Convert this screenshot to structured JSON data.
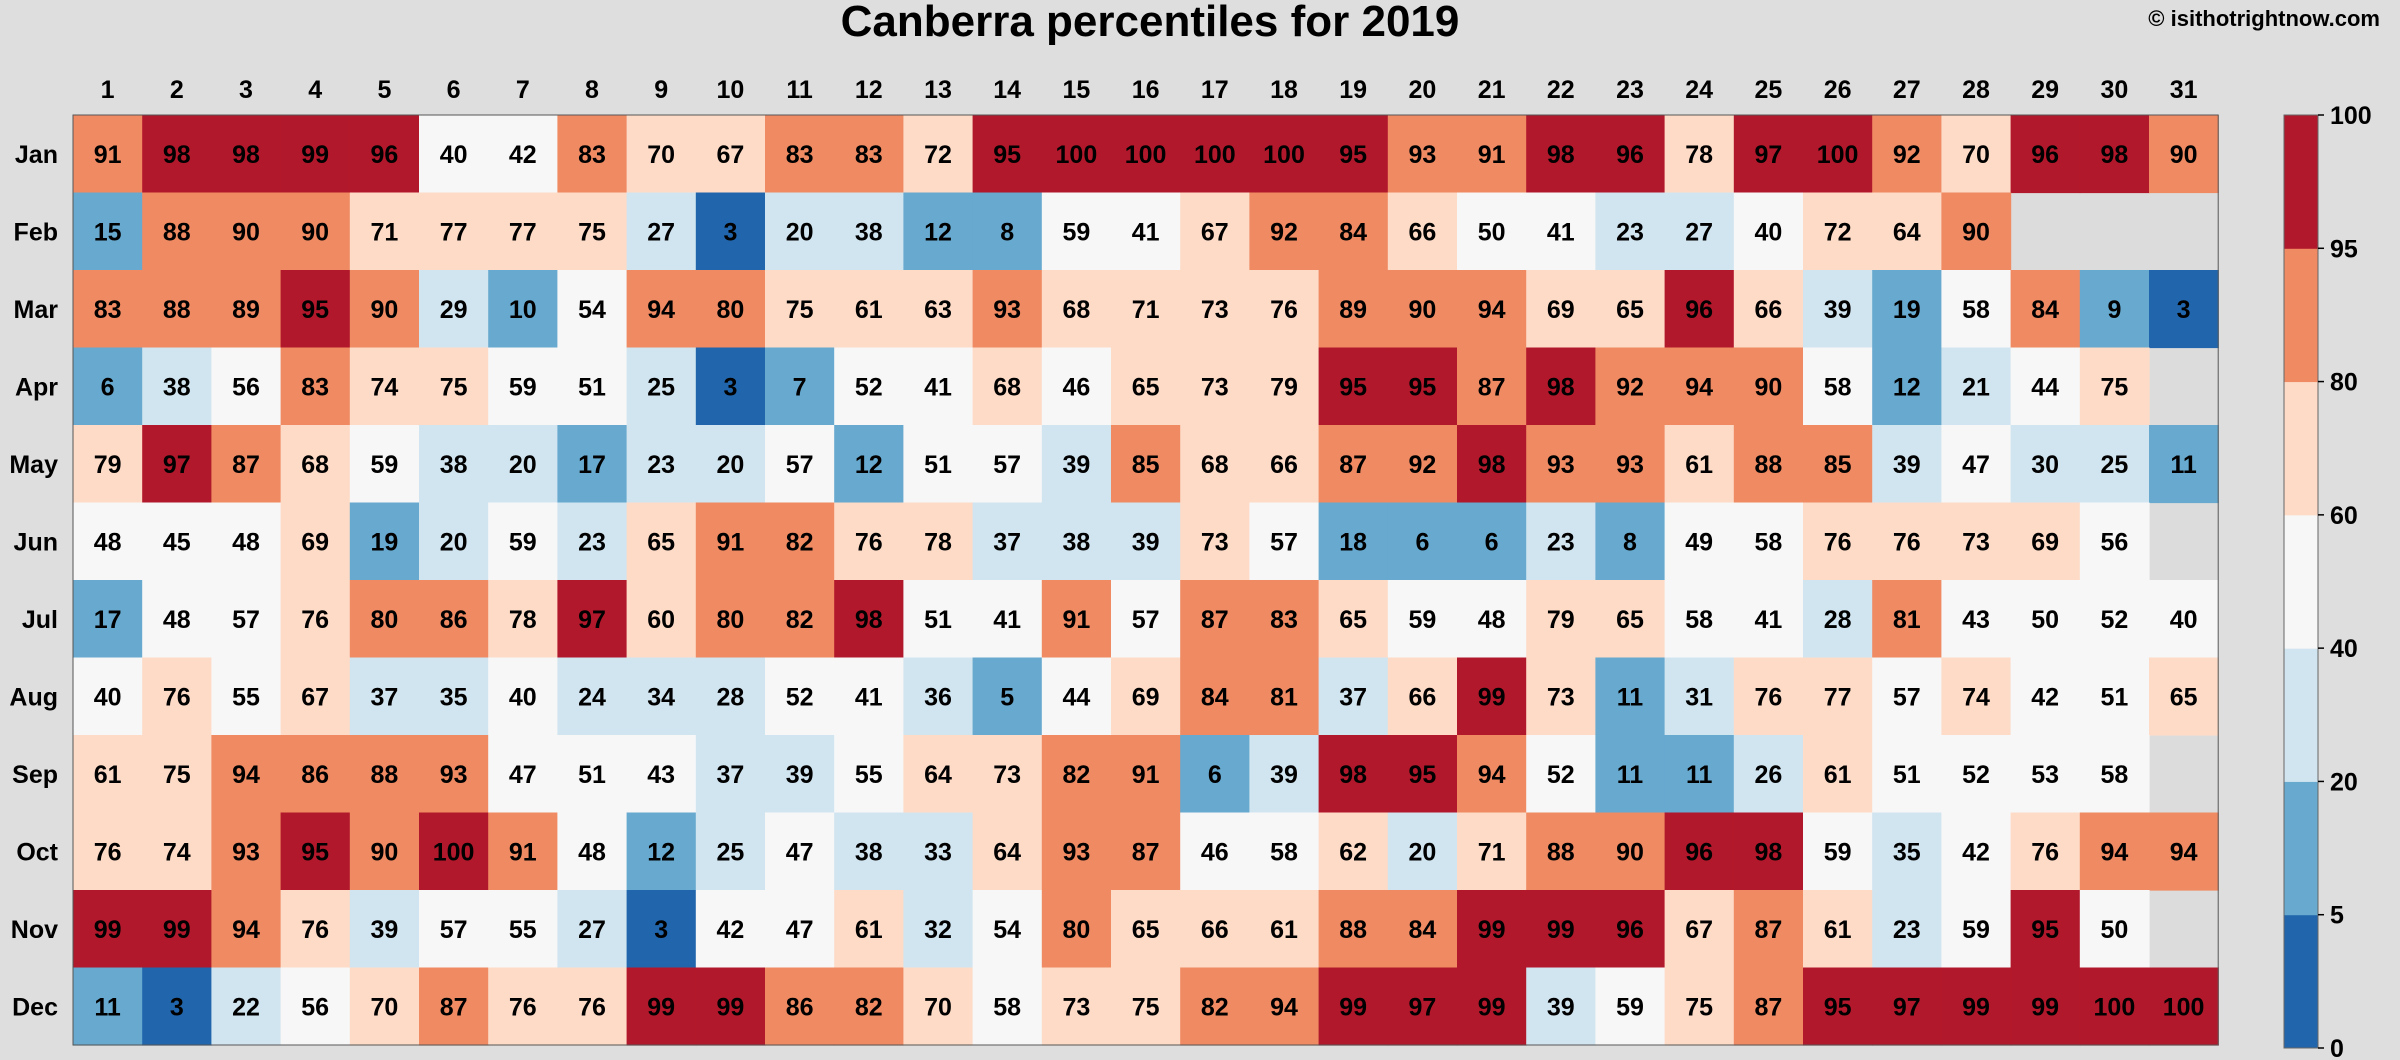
{
  "title": "Canberra percentiles for 2019",
  "copyright": "© isithotrightnow.com",
  "chart_data": {
    "type": "heatmap",
    "title": "Canberra percentiles for 2019",
    "x": [
      "1",
      "2",
      "3",
      "4",
      "5",
      "6",
      "7",
      "8",
      "9",
      "10",
      "11",
      "12",
      "13",
      "14",
      "15",
      "16",
      "17",
      "18",
      "19",
      "20",
      "21",
      "22",
      "23",
      "24",
      "25",
      "26",
      "27",
      "28",
      "29",
      "30",
      "31"
    ],
    "y": [
      "Jan",
      "Feb",
      "Mar",
      "Apr",
      "May",
      "Jun",
      "Jul",
      "Aug",
      "Sep",
      "Oct",
      "Nov",
      "Dec"
    ],
    "values": [
      [
        91,
        98,
        98,
        99,
        96,
        40,
        42,
        83,
        70,
        67,
        83,
        83,
        72,
        95,
        100,
        100,
        100,
        100,
        95,
        93,
        91,
        98,
        96,
        78,
        97,
        100,
        92,
        70,
        96,
        98,
        90
      ],
      [
        15,
        88,
        90,
        90,
        71,
        77,
        77,
        75,
        27,
        3,
        20,
        38,
        12,
        8,
        59,
        41,
        67,
        92,
        84,
        66,
        50,
        41,
        23,
        27,
        40,
        72,
        64,
        90,
        null,
        null,
        null
      ],
      [
        83,
        88,
        89,
        95,
        90,
        29,
        10,
        54,
        94,
        80,
        75,
        61,
        63,
        93,
        68,
        71,
        73,
        76,
        89,
        90,
        94,
        69,
        65,
        96,
        66,
        39,
        19,
        58,
        84,
        9,
        3
      ],
      [
        6,
        38,
        56,
        83,
        74,
        75,
        59,
        51,
        25,
        3,
        7,
        52,
        41,
        68,
        46,
        65,
        73,
        79,
        95,
        95,
        87,
        98,
        92,
        94,
        90,
        58,
        12,
        21,
        44,
        75,
        null
      ],
      [
        79,
        97,
        87,
        68,
        59,
        38,
        20,
        17,
        23,
        20,
        57,
        12,
        51,
        57,
        39,
        85,
        68,
        66,
        87,
        92,
        98,
        93,
        93,
        61,
        88,
        85,
        39,
        47,
        30,
        25,
        11
      ],
      [
        48,
        45,
        48,
        69,
        19,
        20,
        59,
        23,
        65,
        91,
        82,
        76,
        78,
        37,
        38,
        39,
        73,
        57,
        18,
        6,
        6,
        23,
        8,
        49,
        58,
        76,
        76,
        73,
        69,
        56,
        null
      ],
      [
        17,
        48,
        57,
        76,
        80,
        86,
        78,
        97,
        60,
        80,
        82,
        98,
        51,
        41,
        91,
        57,
        87,
        83,
        65,
        59,
        48,
        79,
        65,
        58,
        41,
        28,
        81,
        43,
        50,
        52,
        40
      ],
      [
        40,
        76,
        55,
        67,
        37,
        35,
        40,
        24,
        34,
        28,
        52,
        41,
        36,
        5,
        44,
        69,
        84,
        81,
        37,
        66,
        99,
        73,
        11,
        31,
        76,
        77,
        57,
        74,
        42,
        51,
        65
      ],
      [
        61,
        75,
        94,
        86,
        88,
        93,
        47,
        51,
        43,
        37,
        39,
        55,
        64,
        73,
        82,
        91,
        6,
        39,
        98,
        95,
        94,
        52,
        11,
        11,
        26,
        61,
        51,
        52,
        53,
        58,
        null
      ],
      [
        76,
        74,
        93,
        95,
        90,
        100,
        91,
        48,
        12,
        25,
        47,
        38,
        33,
        64,
        93,
        87,
        46,
        58,
        62,
        20,
        71,
        88,
        90,
        96,
        98,
        59,
        35,
        42,
        76,
        94,
        94
      ],
      [
        99,
        99,
        94,
        76,
        39,
        57,
        55,
        27,
        3,
        42,
        47,
        61,
        32,
        54,
        80,
        65,
        66,
        61,
        88,
        84,
        99,
        99,
        96,
        67,
        87,
        61,
        23,
        59,
        95,
        50,
        null
      ],
      [
        11,
        3,
        22,
        56,
        70,
        87,
        76,
        76,
        99,
        99,
        86,
        82,
        70,
        58,
        73,
        75,
        82,
        94,
        99,
        97,
        99,
        39,
        59,
        75,
        87,
        95,
        97,
        99,
        99,
        100,
        100
      ]
    ],
    "colorbar": {
      "ticks": [
        0,
        5,
        20,
        40,
        60,
        80,
        95,
        100
      ],
      "bands": [
        {
          "min": 0,
          "max": 5,
          "color": "#2166ac"
        },
        {
          "min": 5,
          "max": 20,
          "color": "#67a9cf"
        },
        {
          "min": 20,
          "max": 40,
          "color": "#d1e5f0"
        },
        {
          "min": 40,
          "max": 60,
          "color": "#f7f7f7"
        },
        {
          "min": 60,
          "max": 80,
          "color": "#fddbc7"
        },
        {
          "min": 80,
          "max": 95,
          "color": "#ef8a62"
        },
        {
          "min": 95,
          "max": 100,
          "color": "#b2182b"
        }
      ]
    },
    "missing_color": "#dcdcdc",
    "xlabel": "",
    "ylabel": ""
  }
}
